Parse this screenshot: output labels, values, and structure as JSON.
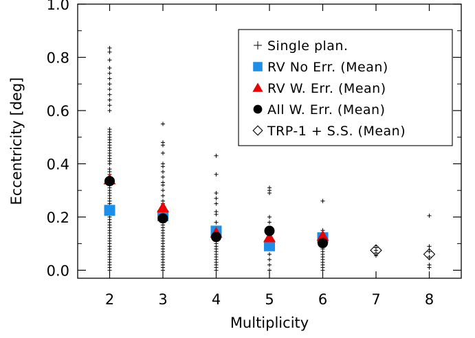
{
  "chart_data": {
    "type": "scatter",
    "xlabel": "Multiplicity",
    "ylabel": "Eccentricity [deg]",
    "xlim": [
      1.4,
      8.6
    ],
    "ylim": [
      -0.03,
      1.0
    ],
    "x_ticks": [
      2,
      3,
      4,
      5,
      6,
      7,
      8
    ],
    "x_tick_labels": [
      "2",
      "3",
      "4",
      "5",
      "6",
      "7",
      "8"
    ],
    "y_ticks": [
      0.0,
      0.2,
      0.4,
      0.6,
      0.8,
      1.0
    ],
    "y_tick_labels": [
      "0.0",
      "0.2",
      "0.4",
      "0.6",
      "0.8",
      "1.0"
    ],
    "legend_position": "top-right",
    "series": [
      {
        "name": "Single plan.",
        "marker": "plus",
        "color": "#000000",
        "points": [
          [
            2,
            0.835
          ],
          [
            2,
            0.82
          ],
          [
            2,
            0.79
          ],
          [
            2,
            0.76
          ],
          [
            2,
            0.74
          ],
          [
            2,
            0.72
          ],
          [
            2,
            0.7
          ],
          [
            2,
            0.68
          ],
          [
            2,
            0.66
          ],
          [
            2,
            0.64
          ],
          [
            2,
            0.62
          ],
          [
            2,
            0.6
          ],
          [
            2,
            0.53
          ],
          [
            2,
            0.52
          ],
          [
            2,
            0.51
          ],
          [
            2,
            0.5
          ],
          [
            2,
            0.49
          ],
          [
            2,
            0.48
          ],
          [
            2,
            0.47
          ],
          [
            2,
            0.46
          ],
          [
            2,
            0.45
          ],
          [
            2,
            0.44
          ],
          [
            2,
            0.43
          ],
          [
            2,
            0.42
          ],
          [
            2,
            0.41
          ],
          [
            2,
            0.4
          ],
          [
            2,
            0.38
          ],
          [
            2,
            0.37
          ],
          [
            2,
            0.36
          ],
          [
            2,
            0.35
          ],
          [
            2,
            0.34
          ],
          [
            2,
            0.32
          ],
          [
            2,
            0.31
          ],
          [
            2,
            0.3
          ],
          [
            2,
            0.29
          ],
          [
            2,
            0.28
          ],
          [
            2,
            0.27
          ],
          [
            2,
            0.26
          ],
          [
            2,
            0.25
          ],
          [
            2,
            0.24
          ],
          [
            2,
            0.23
          ],
          [
            2,
            0.22
          ],
          [
            2,
            0.21
          ],
          [
            2,
            0.2
          ],
          [
            2,
            0.19
          ],
          [
            2,
            0.18
          ],
          [
            2,
            0.17
          ],
          [
            2,
            0.16
          ],
          [
            2,
            0.15
          ],
          [
            2,
            0.14
          ],
          [
            2,
            0.13
          ],
          [
            2,
            0.12
          ],
          [
            2,
            0.11
          ],
          [
            2,
            0.1
          ],
          [
            2,
            0.09
          ],
          [
            2,
            0.08
          ],
          [
            2,
            0.07
          ],
          [
            2,
            0.06
          ],
          [
            2,
            0.05
          ],
          [
            2,
            0.04
          ],
          [
            2,
            0.03
          ],
          [
            2,
            0.02
          ],
          [
            2,
            0.01
          ],
          [
            2,
            0.0
          ],
          [
            3,
            0.55
          ],
          [
            3,
            0.48
          ],
          [
            3,
            0.47
          ],
          [
            3,
            0.44
          ],
          [
            3,
            0.4
          ],
          [
            3,
            0.39
          ],
          [
            3,
            0.37
          ],
          [
            3,
            0.35
          ],
          [
            3,
            0.33
          ],
          [
            3,
            0.32
          ],
          [
            3,
            0.3
          ],
          [
            3,
            0.28
          ],
          [
            3,
            0.26
          ],
          [
            3,
            0.25
          ],
          [
            3,
            0.24
          ],
          [
            3,
            0.22
          ],
          [
            3,
            0.21
          ],
          [
            3,
            0.2
          ],
          [
            3,
            0.19
          ],
          [
            3,
            0.18
          ],
          [
            3,
            0.17
          ],
          [
            3,
            0.16
          ],
          [
            3,
            0.15
          ],
          [
            3,
            0.14
          ],
          [
            3,
            0.13
          ],
          [
            3,
            0.12
          ],
          [
            3,
            0.11
          ],
          [
            3,
            0.1
          ],
          [
            3,
            0.09
          ],
          [
            3,
            0.08
          ],
          [
            3,
            0.07
          ],
          [
            3,
            0.06
          ],
          [
            3,
            0.05
          ],
          [
            3,
            0.04
          ],
          [
            3,
            0.03
          ],
          [
            3,
            0.02
          ],
          [
            3,
            0.01
          ],
          [
            3,
            0.0
          ],
          [
            4,
            0.43
          ],
          [
            4,
            0.36
          ],
          [
            4,
            0.29
          ],
          [
            4,
            0.27
          ],
          [
            4,
            0.25
          ],
          [
            4,
            0.22
          ],
          [
            4,
            0.21
          ],
          [
            4,
            0.18
          ],
          [
            4,
            0.16
          ],
          [
            4,
            0.15
          ],
          [
            4,
            0.14
          ],
          [
            4,
            0.13
          ],
          [
            4,
            0.12
          ],
          [
            4,
            0.11
          ],
          [
            4,
            0.1
          ],
          [
            4,
            0.09
          ],
          [
            4,
            0.08
          ],
          [
            4,
            0.07
          ],
          [
            4,
            0.06
          ],
          [
            4,
            0.05
          ],
          [
            4,
            0.04
          ],
          [
            4,
            0.03
          ],
          [
            4,
            0.02
          ],
          [
            4,
            0.01
          ],
          [
            4,
            0.0
          ],
          [
            5,
            0.31
          ],
          [
            5,
            0.3
          ],
          [
            5,
            0.29
          ],
          [
            5,
            0.2
          ],
          [
            5,
            0.18
          ],
          [
            5,
            0.16
          ],
          [
            5,
            0.14
          ],
          [
            5,
            0.12
          ],
          [
            5,
            0.1
          ],
          [
            5,
            0.08
          ],
          [
            5,
            0.06
          ],
          [
            5,
            0.04
          ],
          [
            5,
            0.02
          ],
          [
            5,
            0.0
          ],
          [
            6,
            0.26
          ],
          [
            6,
            0.15
          ],
          [
            6,
            0.14
          ],
          [
            6,
            0.12
          ],
          [
            6,
            0.1
          ],
          [
            6,
            0.09
          ],
          [
            6,
            0.08
          ],
          [
            6,
            0.07
          ],
          [
            6,
            0.06
          ],
          [
            6,
            0.05
          ],
          [
            6,
            0.04
          ],
          [
            6,
            0.03
          ],
          [
            6,
            0.02
          ],
          [
            6,
            0.01
          ],
          [
            6,
            0.0
          ],
          [
            7,
            0.085
          ],
          [
            7,
            0.075
          ],
          [
            7,
            0.065
          ],
          [
            7,
            0.055
          ],
          [
            8,
            0.205
          ],
          [
            8,
            0.09
          ],
          [
            8,
            0.07
          ],
          [
            8,
            0.05
          ],
          [
            8,
            0.02
          ],
          [
            8,
            0.01
          ]
        ]
      },
      {
        "name": "RV No Err. (Mean)",
        "marker": "square",
        "color": "#1e8fe8",
        "points": [
          [
            2,
            0.225
          ],
          [
            3,
            0.205
          ],
          [
            4,
            0.147
          ],
          [
            5,
            0.092
          ],
          [
            6,
            0.122
          ]
        ]
      },
      {
        "name": "RV W. Err. (Mean)",
        "marker": "triangle",
        "color": "#ee0000",
        "points": [
          [
            2,
            0.34
          ],
          [
            3,
            0.235
          ],
          [
            4,
            0.14
          ],
          [
            5,
            0.123
          ],
          [
            6,
            0.128
          ]
        ]
      },
      {
        "name": "All W. Err. (Mean)",
        "marker": "circle",
        "color": "#000000",
        "points": [
          [
            2,
            0.335
          ],
          [
            3,
            0.195
          ],
          [
            4,
            0.125
          ],
          [
            5,
            0.148
          ],
          [
            6,
            0.102
          ]
        ]
      },
      {
        "name": "TRP-1 + S.S. (Mean)",
        "marker": "diamond",
        "color": "#000000",
        "points": [
          [
            7,
            0.075
          ],
          [
            8,
            0.06
          ]
        ]
      }
    ]
  }
}
